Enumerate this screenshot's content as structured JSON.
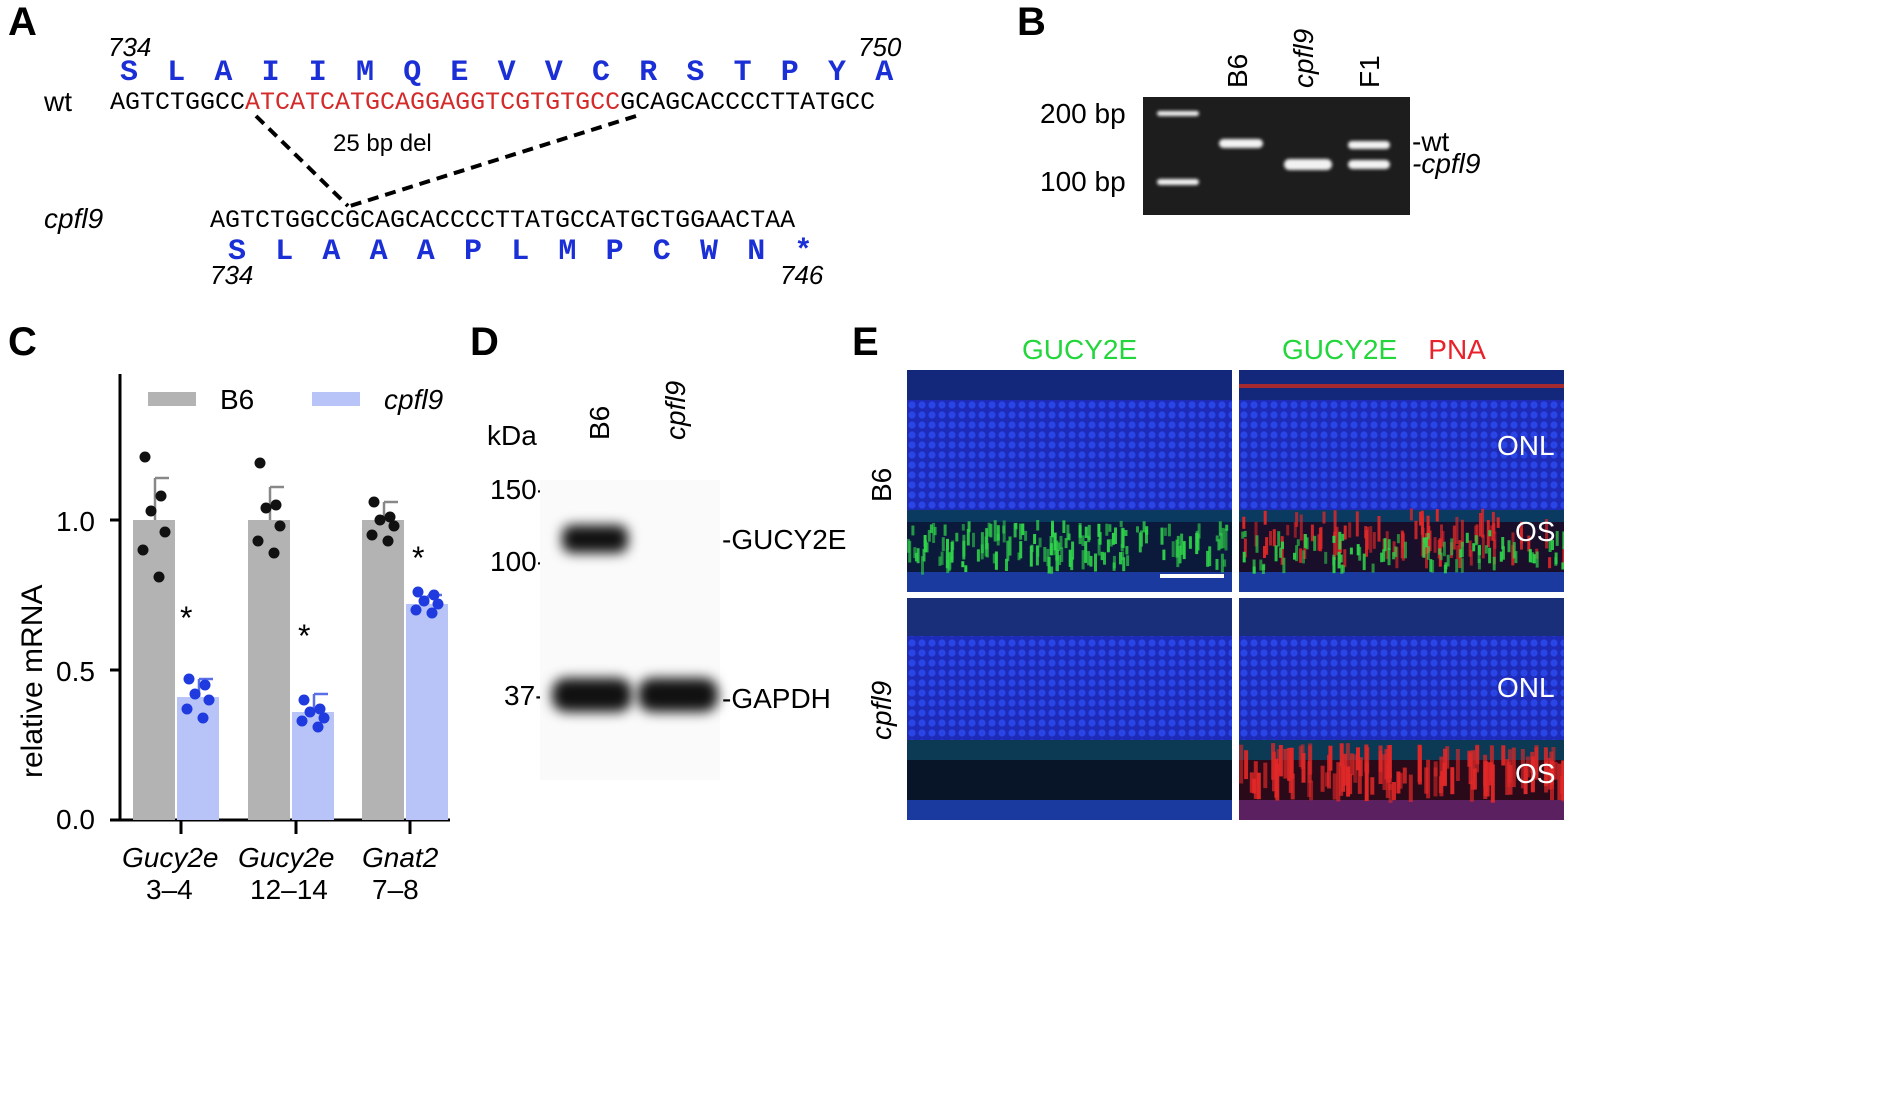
{
  "panels": {
    "A": {
      "letter": "A",
      "start_num_top": "734",
      "end_num_top": "750",
      "aa_top": [
        "S",
        "L",
        "A",
        "I",
        "I",
        "M",
        "Q",
        "E",
        "V",
        "V",
        "C",
        "R",
        "S",
        "T",
        "P",
        "Y",
        "A"
      ],
      "wt_label": "wt",
      "wt_seq_pre": "AGTCTGGCC",
      "wt_seq_del": "ATCATCATGCAGGAGGTCGTGTGCC",
      "wt_seq_post": "GCAGCACCCCTTATGCC",
      "del_label": "25 bp del",
      "mut_label": "cpfl9",
      "mut_seq": "AGTCTGGCCGCAGCACCCCTTATGCCATGCTGGAACTAA",
      "aa_bottom": [
        "S",
        "L",
        "A",
        "A",
        "A",
        "P",
        "L",
        "M",
        "P",
        "C",
        "W",
        "N",
        "*"
      ],
      "start_num_bottom": "734",
      "end_num_bottom": "746"
    },
    "B": {
      "letter": "B",
      "lanes": [
        "B6",
        "cpfl9",
        "F1"
      ],
      "ladder_labels": [
        "200 bp",
        "100 bp"
      ],
      "band_labels": [
        "-wt",
        "-cpfl9"
      ]
    },
    "C": {
      "letter": "C",
      "legend_b6": "B6",
      "legend_mut": "cpfl9",
      "ylabel": "relative mRNA",
      "yticks": [
        "1.0",
        "0.5",
        "0.0"
      ],
      "groups": [
        {
          "gene": "Gucy2e",
          "exons": "3–4"
        },
        {
          "gene": "Gucy2e",
          "exons": "12–14"
        },
        {
          "gene": "Gnat2",
          "exons": "7–8"
        }
      ],
      "sig_marks": [
        "*",
        "*",
        "*"
      ]
    },
    "D": {
      "letter": "D",
      "kda_label": "kDa",
      "lanes": [
        "B6",
        "cpfl9"
      ],
      "markers": [
        "150-",
        "100-",
        "37-"
      ],
      "band_labels": [
        "-GUCY2E",
        "-GAPDH"
      ]
    },
    "E": {
      "letter": "E",
      "col1_title": "GUCY2E",
      "col2_title_a": "GUCY2E",
      "col2_title_b": "PNA",
      "row_labels": [
        "B6",
        "cpfl9"
      ],
      "layer_onl": "ONL",
      "layer_os": "OS"
    }
  },
  "chart_data": {
    "type": "bar",
    "categories": [
      "Gucy2e 3–4",
      "Gucy2e 12–14",
      "Gnat2 7–8"
    ],
    "series": [
      {
        "name": "B6",
        "values": [
          1.0,
          1.0,
          1.0
        ],
        "errors": [
          0.14,
          0.11,
          0.06
        ],
        "points": [
          [
            1.21,
            1.08,
            1.03,
            0.96,
            0.9,
            0.81
          ],
          [
            1.19,
            1.05,
            1.04,
            0.98,
            0.93,
            0.89
          ],
          [
            1.06,
            1.01,
            1.0,
            0.98,
            0.95,
            0.93
          ]
        ]
      },
      {
        "name": "cpfl9",
        "values": [
          0.41,
          0.36,
          0.72
        ],
        "errors": [
          0.06,
          0.06,
          0.03
        ],
        "points": [
          [
            0.47,
            0.45,
            0.42,
            0.4,
            0.37,
            0.34
          ],
          [
            0.4,
            0.37,
            0.36,
            0.34,
            0.33,
            0.31
          ],
          [
            0.76,
            0.75,
            0.73,
            0.72,
            0.7,
            0.69
          ]
        ]
      }
    ],
    "ylabel": "relative mRNA",
    "ylim": [
      0,
      1.5
    ],
    "yticks": [
      0.0,
      0.5,
      1.0
    ],
    "colors": {
      "B6": "#b3b3b3",
      "cpfl9": "#b8c4f8",
      "points_b6": "#111111",
      "points_mut": "#1f3be0"
    },
    "legend_position": "top"
  }
}
